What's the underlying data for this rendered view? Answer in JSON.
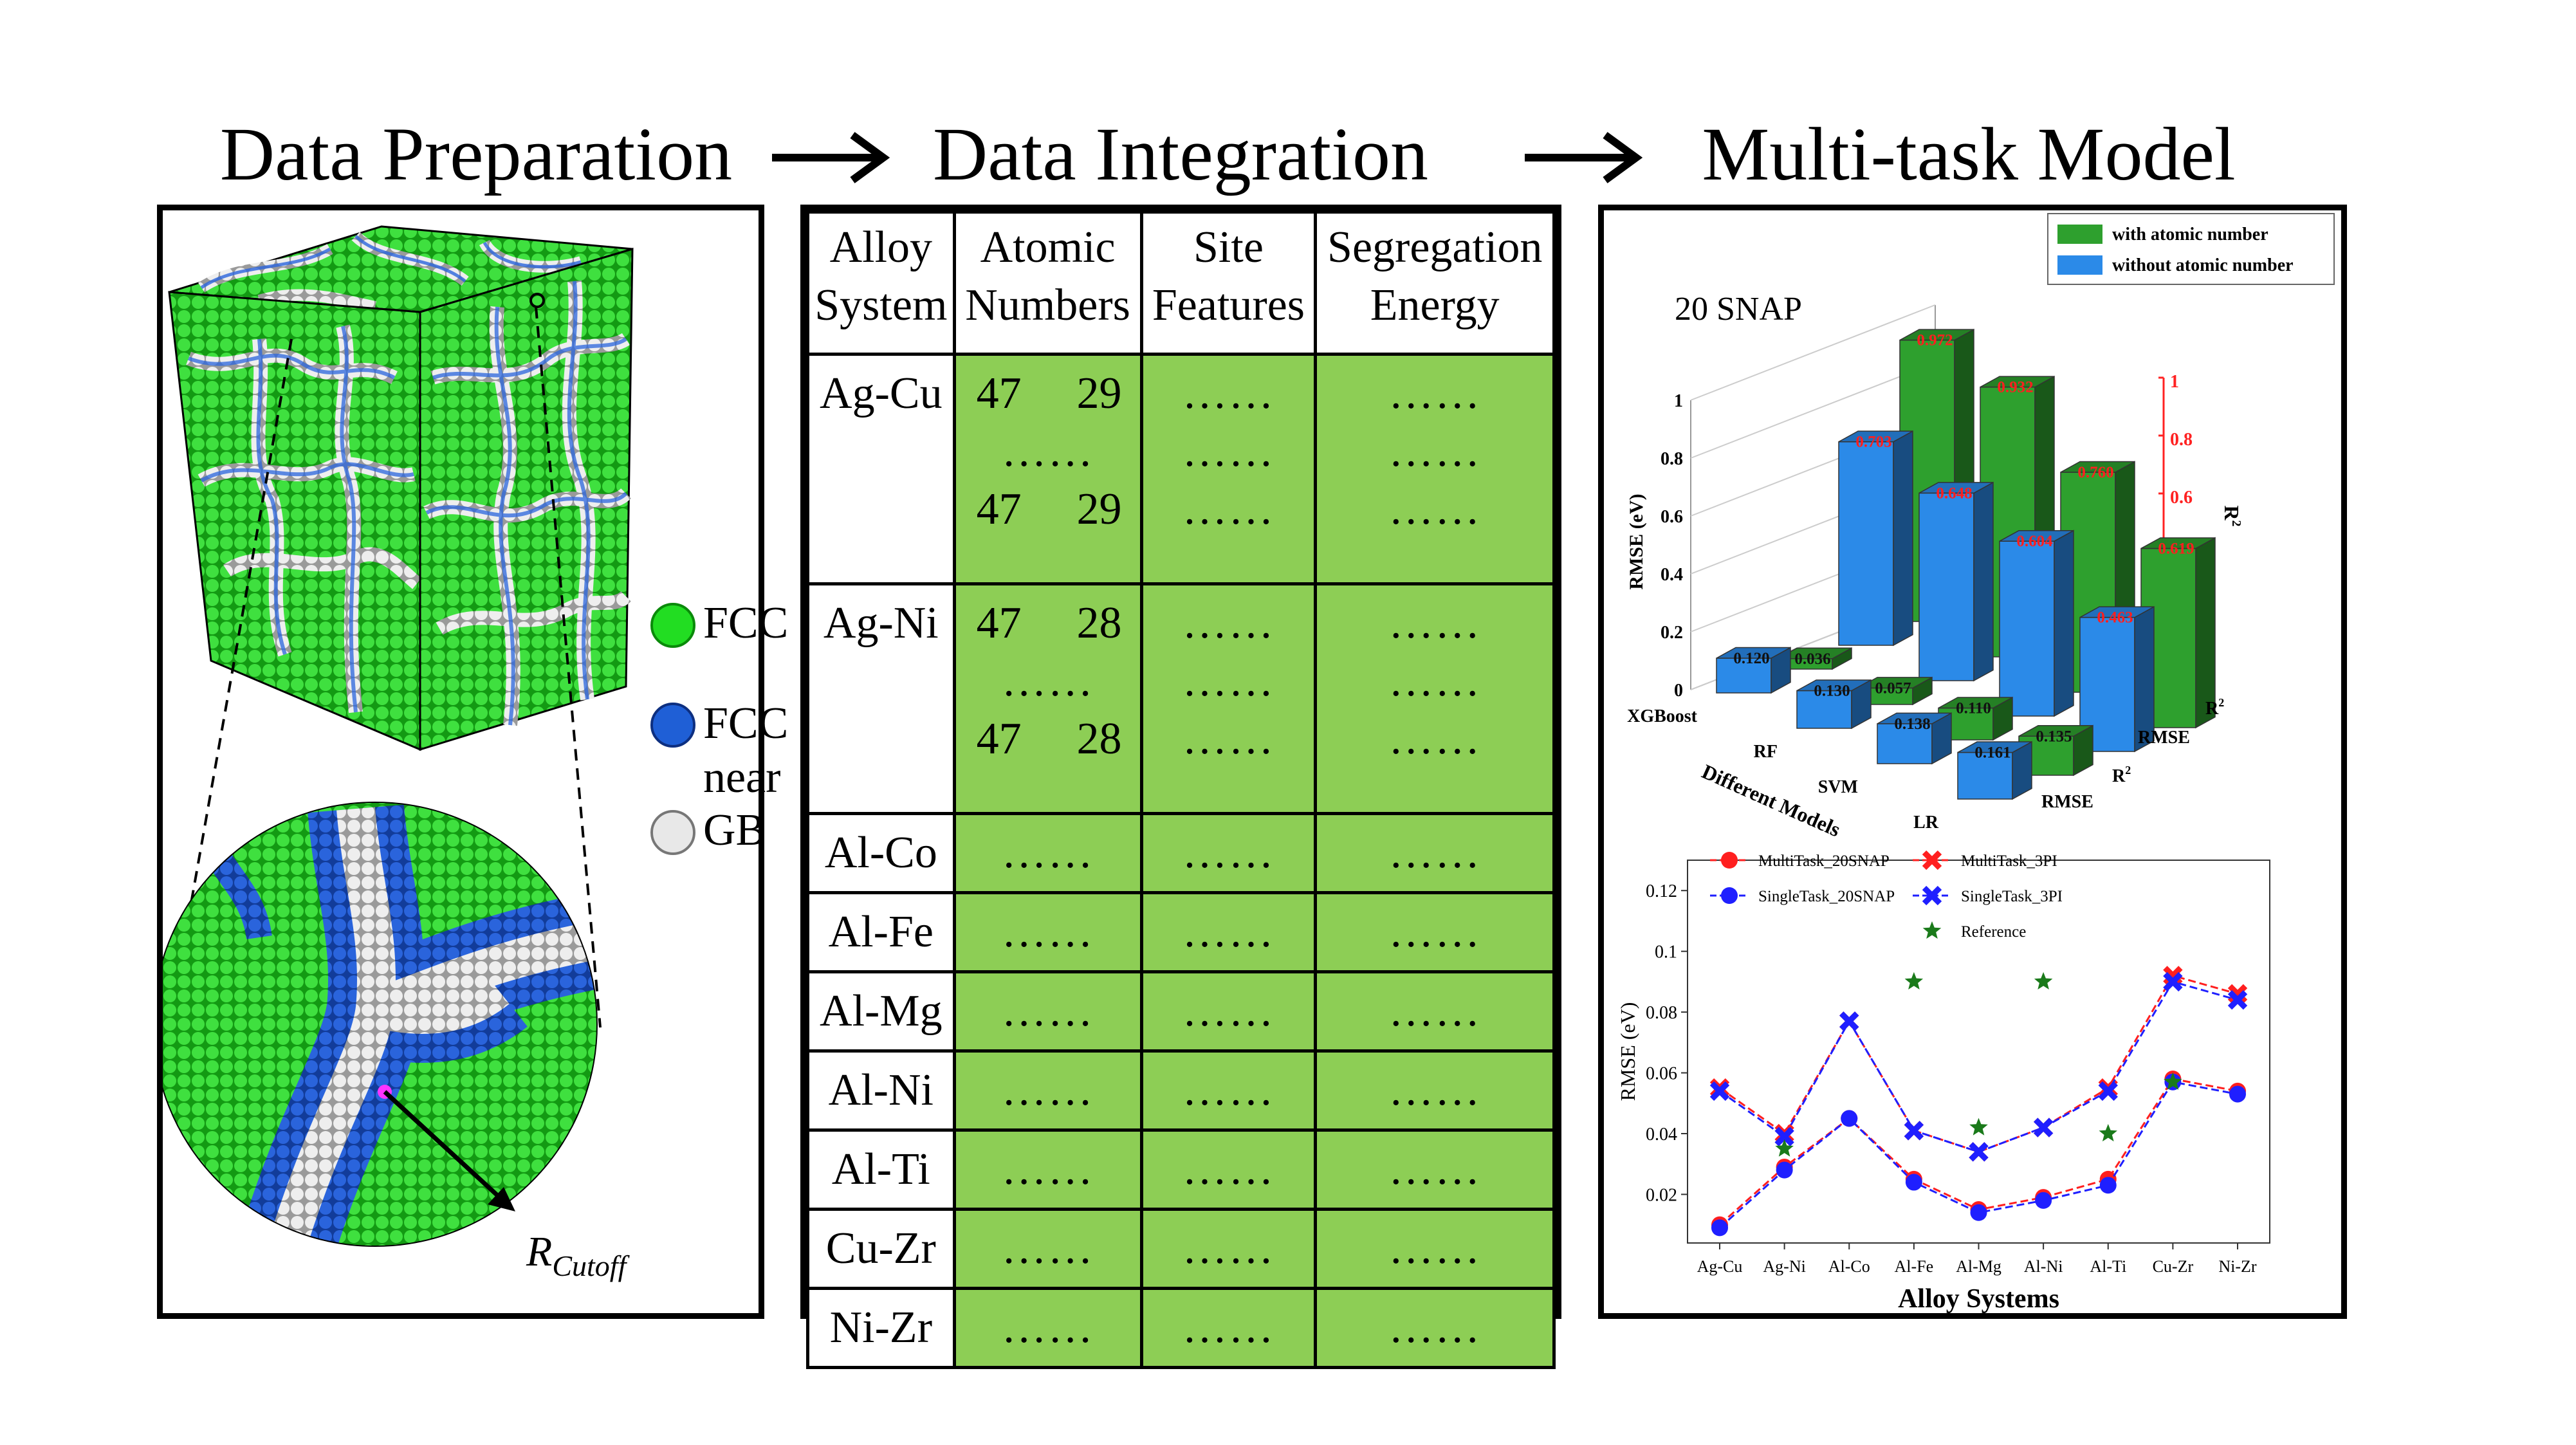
{
  "stages": {
    "prep_title": "Data Preparation",
    "integ_title": "Data Integration",
    "model_title": "Multi-task Model"
  },
  "prep": {
    "legend": [
      {
        "label": "FCC",
        "color": "#22dd22"
      },
      {
        "label": "FCC near",
        "color": "#1f5fd6"
      },
      {
        "label": "GB",
        "color": "#e8e8e8"
      }
    ],
    "cutoff_label": "R",
    "cutoff_sub": "Cutoff"
  },
  "integ": {
    "headers": [
      [
        "Alloy",
        "System"
      ],
      [
        "Atomic",
        "Numbers"
      ],
      [
        "Site",
        "Features"
      ],
      [
        "Segregation",
        "Energy"
      ]
    ],
    "ellipsis": "……",
    "rows": [
      {
        "alloy": "Ag-Cu",
        "expanded": true,
        "num_a": "47",
        "num_b": "29"
      },
      {
        "alloy": "Ag-Ni",
        "expanded": true,
        "num_a": "47",
        "num_b": "28"
      },
      {
        "alloy": "Al-Co",
        "expanded": false
      },
      {
        "alloy": "Al-Fe",
        "expanded": false
      },
      {
        "alloy": "Al-Mg",
        "expanded": false
      },
      {
        "alloy": "Al-Ni",
        "expanded": false
      },
      {
        "alloy": "Al-Ti",
        "expanded": false
      },
      {
        "alloy": "Cu-Zr",
        "expanded": false
      },
      {
        "alloy": "Ni-Zr",
        "expanded": false
      }
    ]
  },
  "chart_data": [
    {
      "type": "bar",
      "subtype": "3d-bar",
      "title": "20 SNAP",
      "legend": [
        {
          "name": "with atomic number",
          "color": "#2ea02e"
        },
        {
          "name": "without atomic number",
          "color": "#2b8ae8"
        }
      ],
      "xlabel": "Different Models",
      "ylabel": "RMSE (eV)",
      "y2label": "R",
      "y2label_sup": "2",
      "categories": [
        "XGBoost",
        "RF",
        "SVM",
        "LR"
      ],
      "depth_labels": [
        {
          "text": "RMSE",
          "sup": ""
        },
        {
          "text": "R",
          "sup": "2"
        },
        {
          "text": "RMSE",
          "sup": ""
        },
        {
          "text": "R",
          "sup": "2"
        }
      ],
      "yticks": [
        "0",
        "0.2",
        "0.4",
        "0.6",
        "0.8",
        "1"
      ],
      "ylim": [
        0,
        1
      ],
      "series": [
        {
          "name": "with atomic number",
          "metric": "R2",
          "values": [
            0.972,
            0.932,
            0.76,
            0.619
          ]
        },
        {
          "name": "without atomic number",
          "metric": "R2",
          "values": [
            0.703,
            0.648,
            0.604,
            0.463
          ]
        },
        {
          "name": "with atomic number",
          "metric": "RMSE",
          "values": [
            0.036,
            0.057,
            0.11,
            0.135
          ]
        },
        {
          "name": "without atomic number",
          "metric": "RMSE",
          "values": [
            0.12,
            0.13,
            0.138,
            0.161
          ]
        }
      ]
    },
    {
      "type": "line",
      "xlabel": "Alloy Systems",
      "ylabel": "RMSE (eV)",
      "categories": [
        "Ag-Cu",
        "Ag-Ni",
        "Al-Co",
        "Al-Fe",
        "Al-Mg",
        "Al-Ni",
        "Al-Ti",
        "Cu-Zr",
        "Ni-Zr"
      ],
      "yticks": [
        "0.02",
        "0.04",
        "0.06",
        "0.08",
        "0.1",
        "0.12"
      ],
      "ylim": [
        0.004,
        0.13
      ],
      "series": [
        {
          "name": "MultiTask_20SNAP",
          "color": "#ff1f1f",
          "marker": "circle",
          "values": [
            0.01,
            0.029,
            0.045,
            0.025,
            0.015,
            0.019,
            0.025,
            0.058,
            0.054
          ]
        },
        {
          "name": "MultiTask_3PI",
          "color": "#ff1f1f",
          "marker": "x",
          "values": [
            0.055,
            0.04,
            0.077,
            0.041,
            0.034,
            0.042,
            0.055,
            0.092,
            0.086
          ]
        },
        {
          "name": "SingleTask_20SNAP",
          "color": "#1f1fff",
          "marker": "circle",
          "values": [
            0.009,
            0.028,
            0.045,
            0.024,
            0.014,
            0.018,
            0.023,
            0.057,
            0.053
          ]
        },
        {
          "name": "SingleTask_3PI",
          "color": "#1f1fff",
          "marker": "x",
          "values": [
            0.054,
            0.039,
            0.077,
            0.041,
            0.034,
            0.042,
            0.054,
            0.09,
            0.084
          ]
        },
        {
          "name": "Reference",
          "color": "#1a7a1a",
          "marker": "star",
          "values": [
            null,
            0.035,
            null,
            0.09,
            0.042,
            0.09,
            0.04,
            0.057,
            null
          ]
        }
      ]
    }
  ]
}
